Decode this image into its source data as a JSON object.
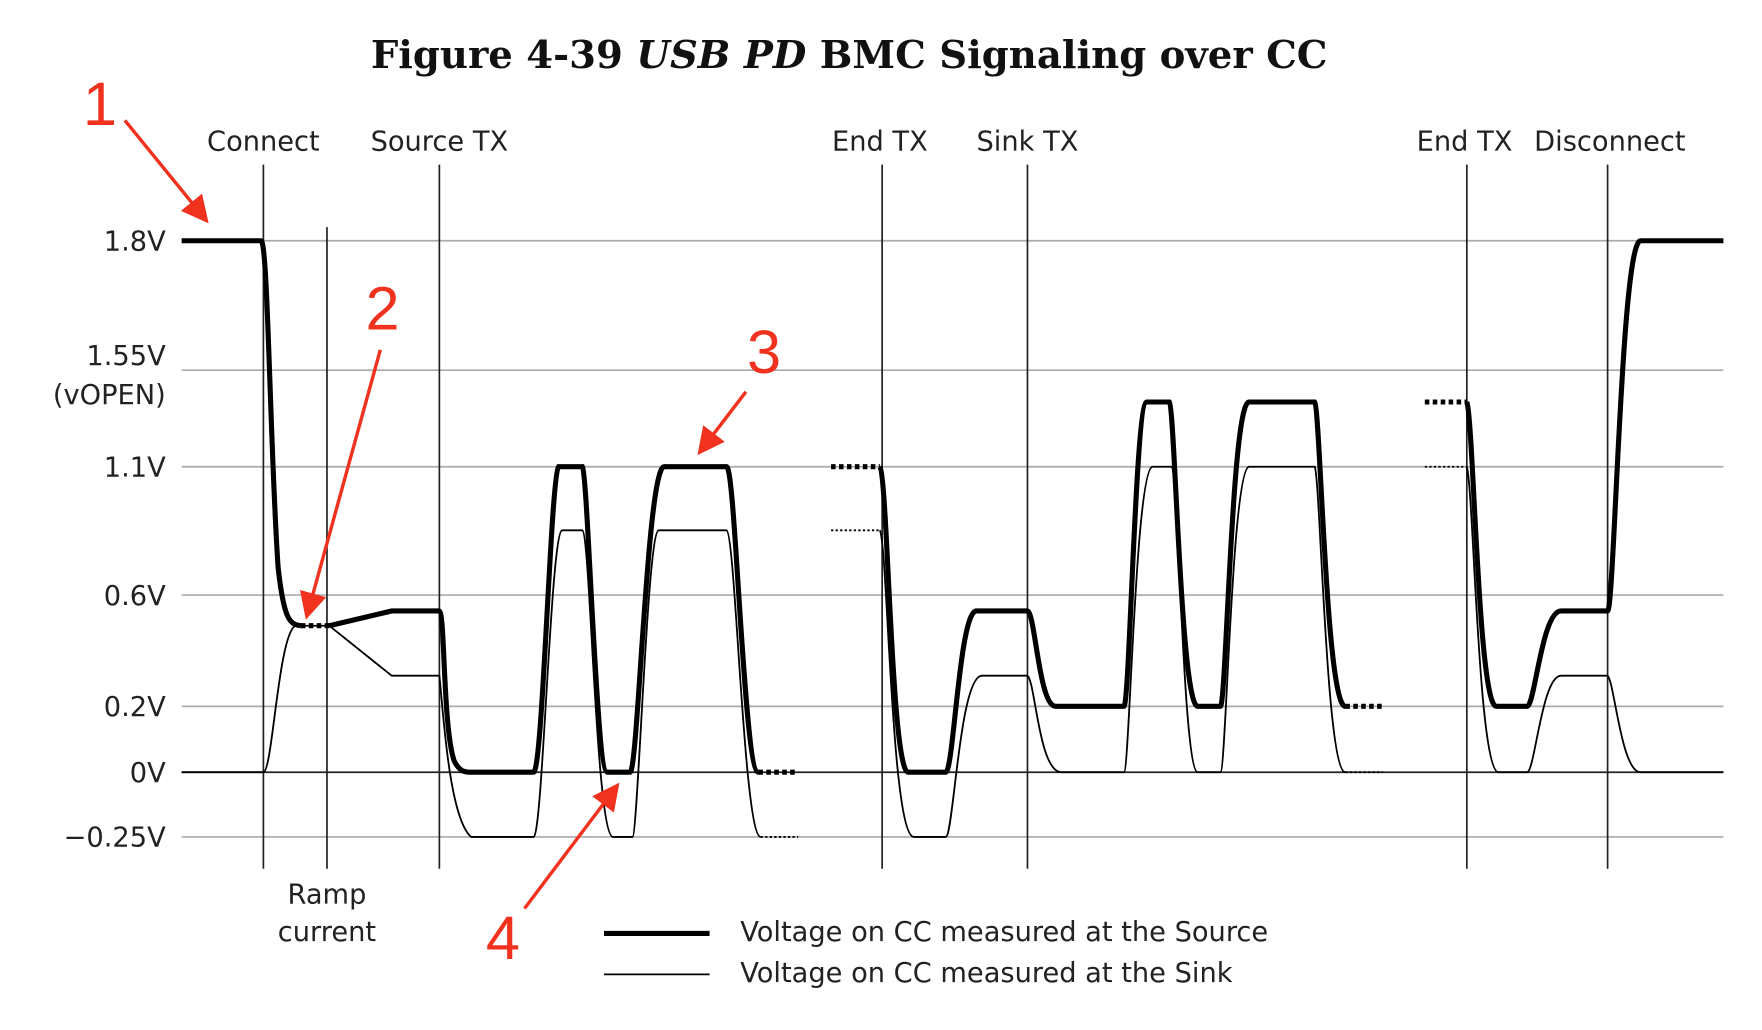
{
  "title": {
    "figure": "Figure 4-39",
    "emphasis": "USB PD",
    "rest": "BMC Signaling over CC"
  },
  "events": [
    "Connect",
    "Source TX",
    "End TX",
    "Sink TX",
    "End TX",
    "Disconnect"
  ],
  "y_labels": [
    "1.8V",
    "1.55V",
    "(vOPEN)",
    "1.1V",
    "0.6V",
    "0.2V",
    "0V",
    "−0.25V"
  ],
  "ramp_label": [
    "Ramp",
    "current"
  ],
  "callouts": [
    "1",
    "2",
    "3",
    "4"
  ],
  "legend": [
    "Voltage on CC measured at the Source",
    "Voltage on CC measured at the Sink"
  ]
}
